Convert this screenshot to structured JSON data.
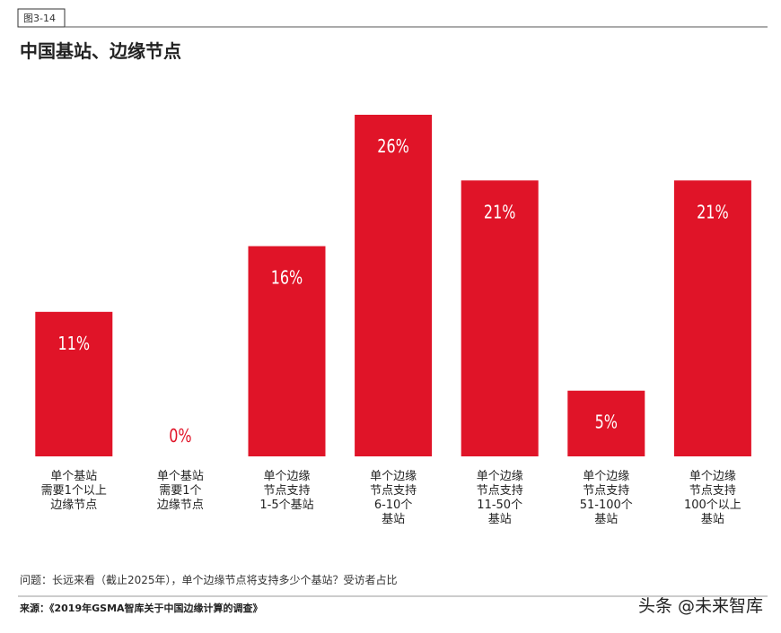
{
  "figure_label": "图3-14",
  "chart_data": {
    "type": "bar",
    "title": "中国基站、边缘节点",
    "categories": [
      [
        "单个基站",
        "需要1个以上",
        "边缘节点"
      ],
      [
        "单个基站",
        "需要1个",
        "边缘节点"
      ],
      [
        "单个边缘",
        "节点支持",
        "1-5个基站"
      ],
      [
        "单个边缘",
        "节点支持",
        "6-10个",
        "基站"
      ],
      [
        "单个边缘",
        "节点支持",
        "11-50个",
        "基站"
      ],
      [
        "单个边缘",
        "节点支持",
        "51-100个",
        "基站"
      ],
      [
        "单个边缘",
        "节点支持",
        "100个以上",
        "基站"
      ]
    ],
    "values": [
      11,
      0,
      16,
      26,
      21,
      5,
      21
    ],
    "value_labels": [
      "11%",
      "0%",
      "16%",
      "26%",
      "21%",
      "5%",
      "21%"
    ],
    "color": "#e01428"
  },
  "note": "问题：长远来看（截止2025年），单个边缘节点将支持多少个基站？受访者占比",
  "source": "来源：《2019年GSMA智库关于中国边缘计算的调查》",
  "watermark": "头条 @未来智库"
}
